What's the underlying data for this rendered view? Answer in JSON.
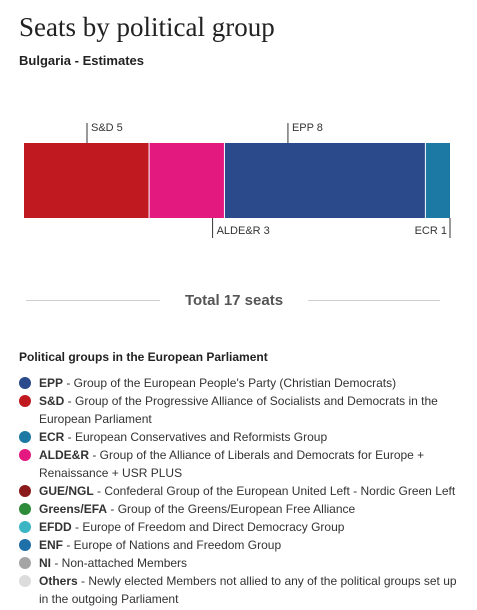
{
  "title": "Seats by political group",
  "subtitle": "Bulgaria - Estimates",
  "total": "Total 17 seats",
  "chart_data": {
    "type": "bar",
    "orientation": "stacked-horizontal",
    "total_seats": 17,
    "segments": [
      {
        "group": "S&D",
        "value": 5,
        "label": "S&D 5",
        "color": "#c0191f",
        "label_side": "top"
      },
      {
        "group": "ALDE&R",
        "value": 3,
        "label": "ALDE&R 3",
        "color": "#e3197f",
        "label_side": "bottom"
      },
      {
        "group": "EPP",
        "value": 8,
        "label": "EPP 8",
        "color": "#2a4a8c",
        "label_side": "top"
      },
      {
        "group": "ECR",
        "value": 1,
        "label": "ECR 1",
        "color": "#1b79a3",
        "label_side": "bottom"
      }
    ]
  },
  "legend": {
    "title": "Political groups in the European Parliament",
    "items": [
      {
        "abbr": "EPP",
        "desc": " - Group of the European People's Party (Christian Democrats)",
        "color": "#2a4a8c"
      },
      {
        "abbr": "S&D",
        "desc": " - Group of the Progressive Alliance of Socialists and Democrats in the European Parliament",
        "color": "#c0191f"
      },
      {
        "abbr": "ECR",
        "desc": " - European Conservatives and Reformists Group",
        "color": "#1b79a3"
      },
      {
        "abbr": "ALDE&R",
        "desc": " - Group of the Alliance of Liberals and Democrats for Europe + Renaissance + USR PLUS",
        "color": "#e3197f"
      },
      {
        "abbr": "GUE/NGL",
        "desc": " - Confederal Group of the European United Left - Nordic Green Left",
        "color": "#8b1a1a"
      },
      {
        "abbr": "Greens/EFA",
        "desc": " - Group of the Greens/European Free Alliance",
        "color": "#2e8b3a"
      },
      {
        "abbr": "EFDD",
        "desc": " - Europe of Freedom and Direct Democracy Group",
        "color": "#3bb5c4"
      },
      {
        "abbr": "ENF",
        "desc": " - Europe of Nations and Freedom Group",
        "color": "#1f6fa8"
      },
      {
        "abbr": "NI",
        "desc": " - Non-attached Members",
        "color": "#a5a5a5"
      },
      {
        "abbr": "Others",
        "desc": " - Newly elected Members not allied to any of the political groups set up in the outgoing Parliament",
        "color": "#dcdcdc"
      }
    ]
  }
}
